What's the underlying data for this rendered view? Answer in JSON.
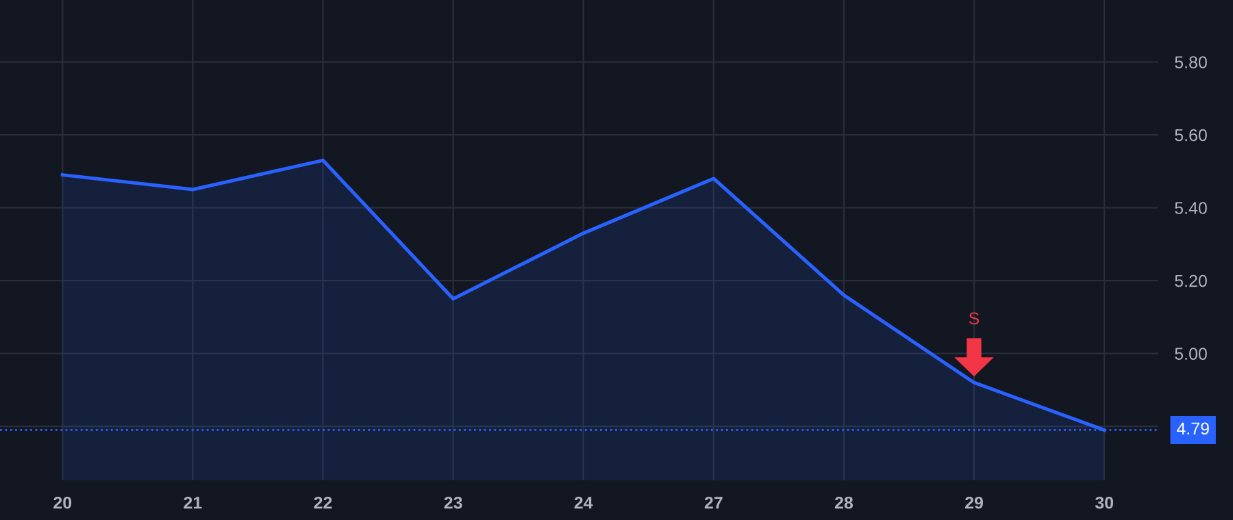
{
  "chart_data": {
    "type": "area",
    "categories": [
      "20",
      "21",
      "22",
      "23",
      "24",
      "27",
      "28",
      "29",
      "30"
    ],
    "series": [
      {
        "color": "#2962ff",
        "values": [
          5.49,
          5.45,
          5.53,
          5.15,
          5.33,
          5.48,
          5.16,
          4.92,
          4.79
        ]
      }
    ],
    "ylim": [
      4.65,
      5.97
    ],
    "yticks": [
      {
        "value": 4.8,
        "label": null
      },
      {
        "value": 5.0,
        "label": "5.00"
      },
      {
        "value": 5.2,
        "label": "5.20"
      },
      {
        "value": 5.4,
        "label": "5.40"
      },
      {
        "value": 5.6,
        "label": "5.60"
      },
      {
        "value": 5.8,
        "label": "5.80"
      }
    ],
    "ref_lines": [
      {
        "axis": "y",
        "value": 4.79,
        "label": "4.79",
        "color": "#2962ff",
        "line_style": "dotted"
      }
    ],
    "annotations": [
      "S"
    ],
    "grid": true,
    "legend": false
  }
}
